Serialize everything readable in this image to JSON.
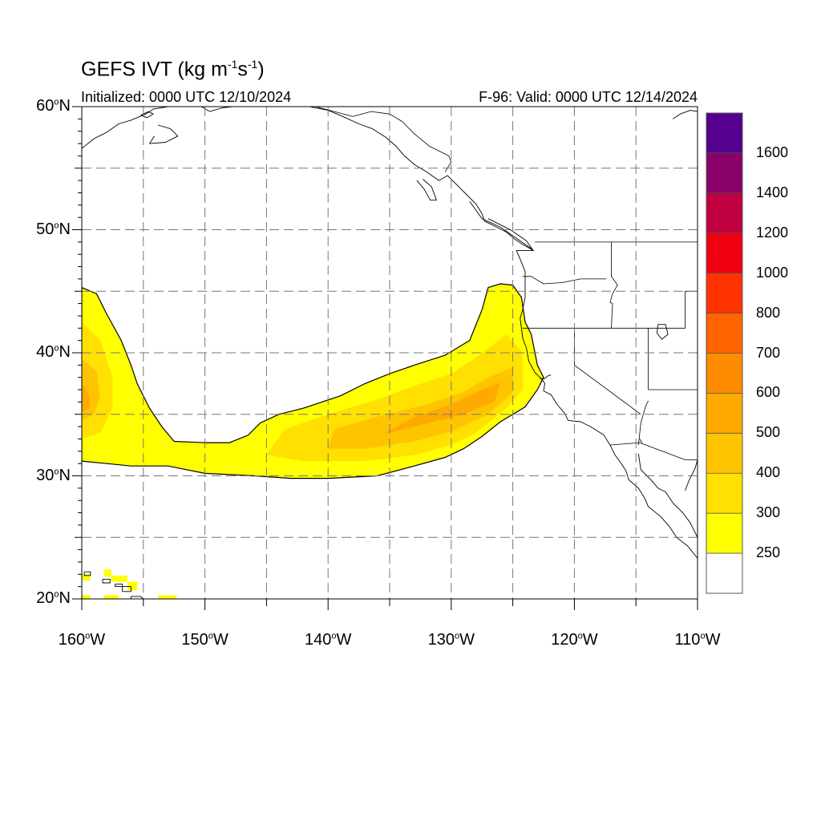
{
  "title": {
    "main": "GEFS IVT",
    "units_prefix": "(kg m",
    "exp1": "-1",
    "units_mid": "s",
    "exp2": "-1",
    "units_suffix": ")"
  },
  "initialized": "Initialized: 0000 UTC 12/10/2024",
  "valid": "F-96: Valid: 0000 UTC 12/14/2024",
  "map": {
    "lon_range": [
      -160,
      -110
    ],
    "lat_range": [
      20,
      60
    ],
    "lat_labels": [
      {
        "value": 60,
        "deg": "60",
        "hemi": "N"
      },
      {
        "value": 50,
        "deg": "50",
        "hemi": "N"
      },
      {
        "value": 40,
        "deg": "40",
        "hemi": "N"
      },
      {
        "value": 30,
        "deg": "30",
        "hemi": "N"
      },
      {
        "value": 20,
        "deg": "20",
        "hemi": "N"
      }
    ],
    "lon_labels": [
      {
        "value": -160,
        "deg": "160",
        "hemi": "W"
      },
      {
        "value": -150,
        "deg": "150",
        "hemi": "W"
      },
      {
        "value": -140,
        "deg": "140",
        "hemi": "W"
      },
      {
        "value": -130,
        "deg": "130",
        "hemi": "W"
      },
      {
        "value": -120,
        "deg": "120",
        "hemi": "W"
      },
      {
        "value": -110,
        "deg": "110",
        "hemi": "W"
      }
    ],
    "grid_interval_deg": 5,
    "grid_style": "dashed"
  },
  "colorbar": {
    "levels": [
      "250",
      "300",
      "400",
      "500",
      "600",
      "700",
      "800",
      "1000",
      "1200",
      "1400",
      "1600"
    ],
    "colors": [
      "#ffffff",
      "#ffff00",
      "#ffe000",
      "#ffc400",
      "#ffaa00",
      "#ff8c00",
      "#ff6400",
      "#ff3200",
      "#ee0010",
      "#c00040",
      "#880068",
      "#550090"
    ]
  },
  "ivt_field": {
    "description_levels": "kg m-1 s-1",
    "main_river": {
      "outer_contour_level": 250,
      "outline": [
        [
          -126,
          45.6
        ],
        [
          -125,
          45.5
        ],
        [
          -124.3,
          44.5
        ],
        [
          -124,
          42.5
        ],
        [
          -123.5,
          41.5
        ],
        [
          -123,
          39
        ],
        [
          -122.5,
          38
        ],
        [
          -123,
          37
        ],
        [
          -124,
          35.6
        ],
        [
          -126,
          34.4
        ],
        [
          -127.5,
          33.2
        ],
        [
          -129,
          32.2
        ],
        [
          -130.5,
          31.5
        ],
        [
          -133,
          30.8
        ],
        [
          -136,
          30
        ],
        [
          -140,
          29.8
        ],
        [
          -143,
          29.8
        ],
        [
          -146,
          30
        ],
        [
          -150,
          30.2
        ],
        [
          -153,
          30.8
        ],
        [
          -156,
          30.8
        ],
        [
          -160,
          31.2
        ],
        [
          -160,
          45.3
        ],
        [
          -158.8,
          44.8
        ],
        [
          -158,
          43.2
        ],
        [
          -156.8,
          41
        ],
        [
          -156,
          39
        ],
        [
          -155.5,
          37.5
        ],
        [
          -154.5,
          35.5
        ],
        [
          -153.5,
          34
        ],
        [
          -152.5,
          32.8
        ],
        [
          -150,
          32.7
        ],
        [
          -148,
          32.7
        ],
        [
          -146.5,
          33.3
        ],
        [
          -145.5,
          34.3
        ],
        [
          -144,
          35
        ],
        [
          -142,
          35.5
        ],
        [
          -139,
          36.5
        ],
        [
          -137,
          37.5
        ],
        [
          -135,
          38.3
        ],
        [
          -133,
          39
        ],
        [
          -130.5,
          39.8
        ],
        [
          -128.5,
          41
        ],
        [
          -127.5,
          43.5
        ],
        [
          -127,
          45.3
        ]
      ],
      "core_300": [
        [
          -125.5,
          41.5
        ],
        [
          -124.2,
          40
        ],
        [
          -124.2,
          37
        ],
        [
          -125.5,
          35.5
        ],
        [
          -128,
          33.5
        ],
        [
          -130,
          32.5
        ],
        [
          -133,
          31.7
        ],
        [
          -137,
          31.2
        ],
        [
          -142,
          31.2
        ],
        [
          -145,
          31.7
        ],
        [
          -143.5,
          33.8
        ],
        [
          -140,
          35
        ],
        [
          -136,
          36.2
        ],
        [
          -133,
          37.3
        ],
        [
          -130,
          38.3
        ],
        [
          -128,
          39.6
        ]
      ],
      "core_400": [
        [
          -125,
          38.8
        ],
        [
          -125,
          36.8
        ],
        [
          -127,
          35
        ],
        [
          -130,
          33.6
        ],
        [
          -133,
          32.8
        ],
        [
          -137,
          32.2
        ],
        [
          -140,
          32.2
        ],
        [
          -139.5,
          33.8
        ],
        [
          -136,
          34.8
        ],
        [
          -132,
          35.8
        ],
        [
          -129,
          36.8
        ],
        [
          -127,
          38
        ]
      ],
      "core_500": [
        [
          -126,
          37.6
        ],
        [
          -126.5,
          36
        ],
        [
          -129,
          35
        ],
        [
          -133,
          34
        ],
        [
          -135.5,
          33.4
        ],
        [
          -133,
          34.8
        ],
        [
          -130,
          35.8
        ],
        [
          -128,
          36.8
        ]
      ],
      "west_300": [
        [
          -160,
          42.5
        ],
        [
          -158.5,
          41
        ],
        [
          -157.5,
          38
        ],
        [
          -157.5,
          35.5
        ],
        [
          -158.5,
          33.5
        ],
        [
          -160,
          33
        ]
      ],
      "west_400": [
        [
          -160,
          39.5
        ],
        [
          -158.8,
          38.5
        ],
        [
          -158.5,
          36.5
        ],
        [
          -159,
          35
        ],
        [
          -160,
          34.5
        ]
      ],
      "west_500": [
        [
          -160,
          37.5
        ],
        [
          -159.4,
          36.5
        ],
        [
          -159.4,
          35.5
        ],
        [
          -160,
          35.2
        ]
      ]
    },
    "hawaii_cells": [
      [
        -160,
        21.5,
        -159.3,
        22.0
      ],
      [
        -158.2,
        21.8,
        -157.6,
        22.4
      ],
      [
        -157.6,
        21.4,
        -156.3,
        21.9
      ],
      [
        -156.3,
        20.7,
        -155.5,
        21.4
      ],
      [
        -160,
        20.0,
        -159.3,
        20.3
      ],
      [
        -158.2,
        20.0,
        -157.0,
        20.3
      ],
      [
        -153.8,
        20.0,
        -152.3,
        20.3
      ]
    ]
  },
  "coastline": [
    [
      [
        -160,
        56.6
      ],
      [
        -159,
        57.4
      ],
      [
        -158,
        57.9
      ],
      [
        -157,
        58.6
      ],
      [
        -156,
        58.9
      ],
      [
        -154.8,
        59.4
      ],
      [
        -154.2,
        59.8
      ],
      [
        -153,
        60
      ]
    ],
    [
      [
        -153.8,
        58.5
      ],
      [
        -152.8,
        58.2
      ],
      [
        -152.2,
        57.6
      ],
      [
        -153.2,
        57.1
      ],
      [
        -154.5,
        57
      ],
      [
        -154.1,
        57.6
      ]
    ],
    [
      [
        -150.3,
        60
      ],
      [
        -149.6,
        59.6
      ],
      [
        -148.6,
        59.9
      ],
      [
        -147.8,
        60
      ]
    ],
    [
      [
        -141.5,
        60
      ],
      [
        -140,
        59.7
      ],
      [
        -138.8,
        59.2
      ],
      [
        -137.5,
        58.6
      ],
      [
        -136.4,
        58.2
      ],
      [
        -135.3,
        57.5
      ],
      [
        -134.5,
        56.8
      ],
      [
        -133.8,
        56
      ],
      [
        -133,
        55.3
      ],
      [
        -132,
        54.7
      ],
      [
        -131,
        54
      ],
      [
        -130.3,
        54.4
      ],
      [
        -129.5,
        53.6
      ],
      [
        -128.8,
        52.9
      ],
      [
        -128,
        52.1
      ],
      [
        -127.5,
        51.3
      ],
      [
        -127.3,
        50.7
      ],
      [
        -126.5,
        50.3
      ],
      [
        -125.5,
        49.8
      ],
      [
        -124.8,
        49.2
      ],
      [
        -124.2,
        48.8
      ],
      [
        -123.3,
        48.3
      ],
      [
        -124.7,
        48.3
      ],
      [
        -124.4,
        47.6
      ],
      [
        -124,
        46.6
      ],
      [
        -124,
        45.8
      ],
      [
        -124,
        44.5
      ],
      [
        -124.2,
        43.5
      ],
      [
        -124.4,
        42.8
      ],
      [
        -124.3,
        42
      ],
      [
        -124.2,
        41.2
      ],
      [
        -123.9,
        40.4
      ],
      [
        -123.7,
        39.3
      ],
      [
        -123.2,
        38.4
      ],
      [
        -122.6,
        37.8
      ],
      [
        -122.4,
        37.5
      ],
      [
        -122.5,
        36.9
      ],
      [
        -121.9,
        36.6
      ],
      [
        -121.4,
        35.8
      ],
      [
        -120.8,
        35.1
      ],
      [
        -120.5,
        34.5
      ],
      [
        -119.5,
        34.4
      ],
      [
        -118.7,
        34
      ],
      [
        -118.2,
        33.7
      ],
      [
        -117.6,
        33.3
      ],
      [
        -117.1,
        32.5
      ],
      [
        -116.7,
        31.7
      ],
      [
        -116.2,
        31
      ],
      [
        -115.8,
        30.4
      ],
      [
        -115.6,
        29.7
      ],
      [
        -114.8,
        29
      ],
      [
        -114.3,
        28.2
      ],
      [
        -114,
        27.5
      ],
      [
        -113,
        26.7
      ],
      [
        -112.3,
        25.9
      ],
      [
        -111.7,
        25
      ],
      [
        -110.8,
        24.3
      ],
      [
        -110,
        23.3
      ]
    ],
    [
      [
        -132.8,
        54
      ],
      [
        -132.2,
        53.3
      ],
      [
        -131.7,
        52.4
      ],
      [
        -131.2,
        52.4
      ],
      [
        -131.6,
        53.5
      ],
      [
        -132.3,
        54.1
      ]
    ],
    [
      [
        -128.5,
        52.3
      ],
      [
        -127.5,
        50.9
      ],
      [
        -126,
        50.2
      ],
      [
        -124.7,
        49.3
      ],
      [
        -123.4,
        48.4
      ],
      [
        -123.9,
        49.1
      ],
      [
        -125.2,
        50
      ],
      [
        -127,
        50.9
      ]
    ],
    [
      [
        -122.8,
        37.9
      ],
      [
        -122.4,
        37.9
      ],
      [
        -122.2,
        38.1
      ],
      [
        -121.9,
        38.2
      ]
    ],
    [
      [
        -114.8,
        31.8
      ],
      [
        -114.6,
        30.5
      ],
      [
        -113.8,
        29.7
      ],
      [
        -113.2,
        29
      ],
      [
        -112.6,
        28.7
      ],
      [
        -112,
        27.8
      ],
      [
        -111.2,
        27
      ],
      [
        -110.6,
        26.2
      ],
      [
        -110,
        25
      ]
    ],
    [
      [
        -110,
        31.3
      ],
      [
        -110.2,
        30.6
      ],
      [
        -110.7,
        29.6
      ],
      [
        -111,
        28.8
      ]
    ],
    [
      [
        -159.8,
        22.2
      ],
      [
        -159.3,
        22.2
      ],
      [
        -159.3,
        21.9
      ],
      [
        -159.8,
        21.9
      ],
      [
        -159.8,
        22.2
      ]
    ],
    [
      [
        -158.3,
        21.6
      ],
      [
        -157.7,
        21.6
      ],
      [
        -157.7,
        21.3
      ],
      [
        -158.3,
        21.3
      ],
      [
        -158.3,
        21.6
      ]
    ],
    [
      [
        -157.3,
        21.2
      ],
      [
        -156.7,
        21.2
      ],
      [
        -156.7,
        21
      ],
      [
        -157.3,
        21
      ],
      [
        -157.3,
        21.2
      ]
    ],
    [
      [
        -156.7,
        21
      ],
      [
        -156,
        21
      ],
      [
        -156,
        20.6
      ],
      [
        -156.7,
        20.6
      ],
      [
        -156.7,
        21
      ]
    ],
    [
      [
        -156,
        20.2
      ],
      [
        -155.2,
        20.2
      ],
      [
        -154.8,
        19.6
      ],
      [
        -155.5,
        19.3
      ],
      [
        -156,
        19.6
      ],
      [
        -156,
        20.2
      ]
    ],
    [
      [
        -113.2,
        42.3
      ],
      [
        -112.6,
        42.3
      ],
      [
        -112.4,
        41.5
      ],
      [
        -112.9,
        41.1
      ],
      [
        -113.3,
        41.6
      ],
      [
        -113.2,
        42.3
      ]
    ],
    [
      [
        -155.2,
        59.3
      ],
      [
        -154.6,
        59.6
      ],
      [
        -154.2,
        59.4
      ],
      [
        -154.7,
        59.1
      ],
      [
        -155.2,
        59.3
      ]
    ],
    [
      [
        -112,
        59
      ],
      [
        -111.4,
        59.4
      ],
      [
        -110.6,
        59.7
      ],
      [
        -110,
        59.6
      ]
    ]
  ],
  "borders": [
    [
      [
        -141,
        60
      ],
      [
        -138,
        59.2
      ],
      [
        -136.5,
        59.6
      ],
      [
        -135,
        59.4
      ],
      [
        -134,
        58.8
      ],
      [
        -133,
        57.8
      ],
      [
        -131.8,
        56.8
      ],
      [
        -130.2,
        56
      ],
      [
        -130,
        55.5
      ],
      [
        -130.5,
        54.7
      ]
    ],
    [
      [
        -123.2,
        49
      ],
      [
        -110,
        49
      ]
    ],
    [
      [
        -117,
        49
      ],
      [
        -117,
        46.2
      ],
      [
        -116.7,
        45.8
      ],
      [
        -116.5,
        45.5
      ],
      [
        -116.9,
        44.8
      ],
      [
        -117.1,
        44.1
      ],
      [
        -116.9,
        44
      ],
      [
        -117,
        42
      ]
    ],
    [
      [
        -124.2,
        46.2
      ],
      [
        -123.5,
        46.2
      ],
      [
        -122.5,
        45.6
      ],
      [
        -121,
        45.7
      ],
      [
        -119.5,
        46
      ],
      [
        -117.4,
        46
      ]
    ],
    [
      [
        -124.2,
        42
      ],
      [
        -111,
        42
      ],
      [
        -111,
        45
      ],
      [
        -110,
        45
      ]
    ],
    [
      [
        -120,
        42
      ],
      [
        -120,
        39
      ],
      [
        -114.6,
        35
      ]
    ],
    [
      [
        -114,
        42
      ],
      [
        -114,
        37
      ],
      [
        -110,
        37
      ]
    ],
    [
      [
        -117.1,
        32.5
      ],
      [
        -114.7,
        32.7
      ],
      [
        -111,
        31.3
      ],
      [
        -110,
        31.3
      ]
    ],
    [
      [
        -114.8,
        32.5
      ],
      [
        -114.6,
        34.3
      ],
      [
        -114.2,
        35.7
      ],
      [
        -114,
        36.1
      ]
    ],
    [
      [
        -114.7,
        33
      ],
      [
        -114.5,
        32.7
      ]
    ]
  ]
}
